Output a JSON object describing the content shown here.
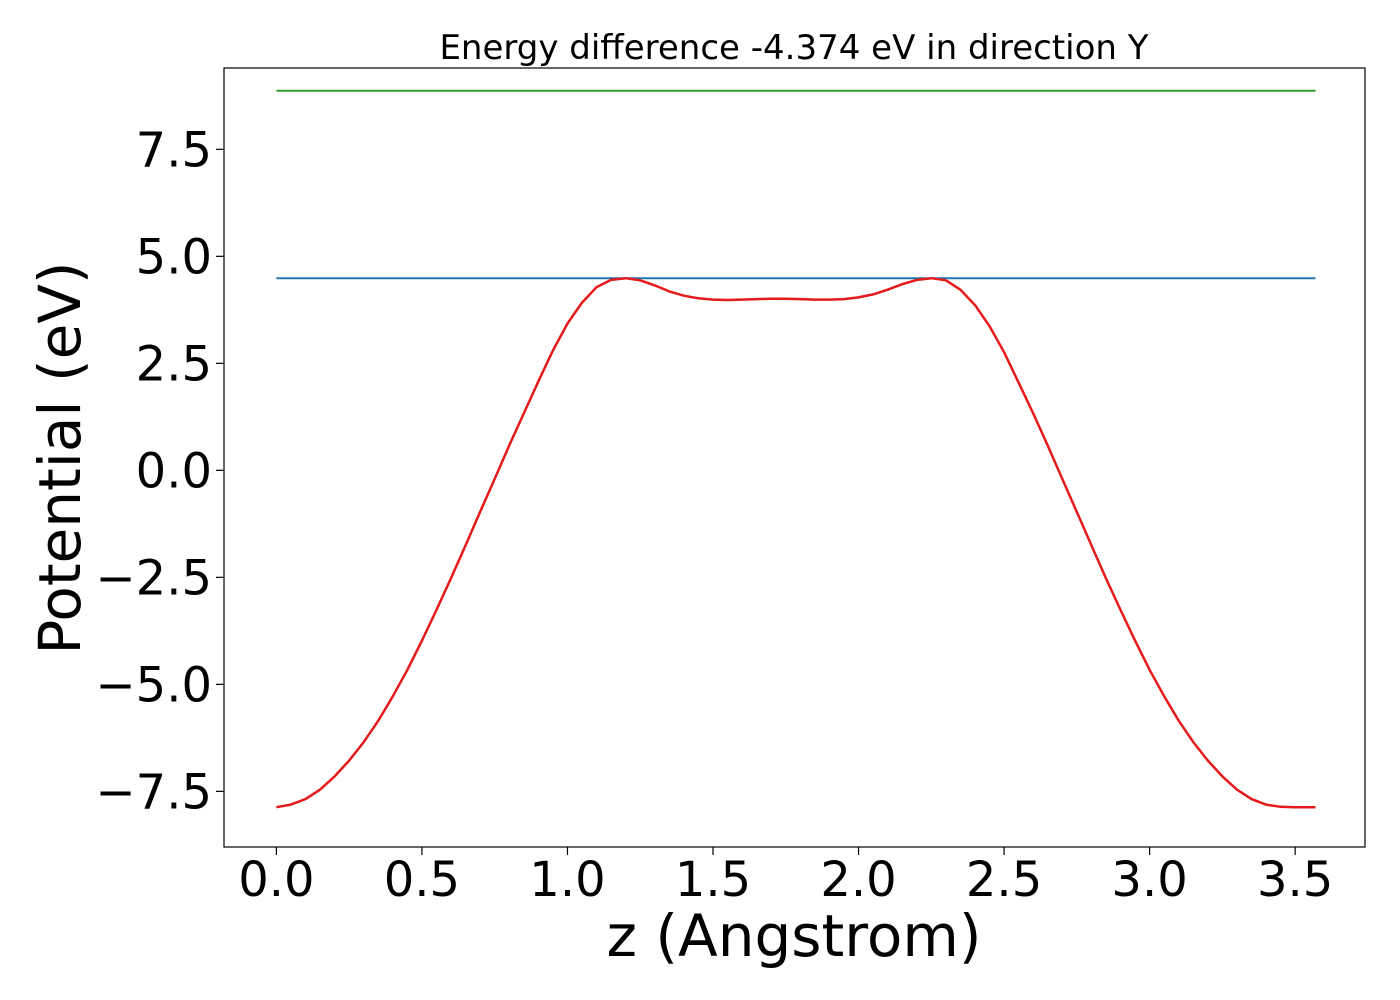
{
  "chart_data": {
    "type": "line",
    "title": "Energy difference -4.374 eV in direction Y",
    "xlabel": "z (Angstrom)",
    "ylabel": "Potential (eV)",
    "xlim": [
      -0.18,
      3.74
    ],
    "ylim": [
      -8.8,
      9.4
    ],
    "x_ticks": [
      {
        "value": 0.0,
        "label": "0.0"
      },
      {
        "value": 0.5,
        "label": "0.5"
      },
      {
        "value": 1.0,
        "label": "1.0"
      },
      {
        "value": 1.5,
        "label": "1.5"
      },
      {
        "value": 2.0,
        "label": "2.0"
      },
      {
        "value": 2.5,
        "label": "2.5"
      },
      {
        "value": 3.0,
        "label": "3.0"
      },
      {
        "value": 3.5,
        "label": "3.5"
      }
    ],
    "y_ticks": [
      {
        "value": -7.5,
        "label": "−7.5"
      },
      {
        "value": -5.0,
        "label": "−5.0"
      },
      {
        "value": -2.5,
        "label": "−2.5"
      },
      {
        "value": 0.0,
        "label": "0.0"
      },
      {
        "value": 2.5,
        "label": "2.5"
      },
      {
        "value": 5.0,
        "label": "5.0"
      },
      {
        "value": 7.5,
        "label": "7.5"
      }
    ],
    "grid": false,
    "series": [
      {
        "color": "#2ca02c",
        "x": [
          0.0,
          3.57
        ],
        "y": [
          8.87,
          8.87
        ]
      },
      {
        "color": "#1f77b4",
        "x": [
          0.0,
          3.57
        ],
        "y": [
          4.49,
          4.49
        ]
      },
      {
        "color": "#e41a1c",
        "x": [
          0.0,
          0.05,
          0.1,
          0.15,
          0.2,
          0.25,
          0.3,
          0.35,
          0.4,
          0.45,
          0.5,
          0.55,
          0.6,
          0.65,
          0.7,
          0.75,
          0.8,
          0.85,
          0.9,
          0.95,
          1.0,
          1.05,
          1.1,
          1.15,
          1.2,
          1.25,
          1.3,
          1.35,
          1.4,
          1.45,
          1.5,
          1.55,
          1.6,
          1.65,
          1.7,
          1.75,
          1.8,
          1.85,
          1.9,
          1.95,
          2.0,
          2.05,
          2.1,
          2.15,
          2.2,
          2.25,
          2.3,
          2.35,
          2.4,
          2.45,
          2.5,
          2.55,
          2.6,
          2.65,
          2.7,
          2.75,
          2.8,
          2.85,
          2.9,
          2.95,
          3.0,
          3.05,
          3.1,
          3.15,
          3.2,
          3.25,
          3.3,
          3.35,
          3.4,
          3.45,
          3.5,
          3.55,
          3.57
        ],
        "y": [
          -7.87,
          -7.81,
          -7.68,
          -7.46,
          -7.15,
          -6.78,
          -6.35,
          -5.85,
          -5.28,
          -4.66,
          -3.98,
          -3.26,
          -2.52,
          -1.75,
          -0.97,
          -0.2,
          0.58,
          1.33,
          2.08,
          2.8,
          3.43,
          3.92,
          4.28,
          4.45,
          4.49,
          4.44,
          4.32,
          4.18,
          4.08,
          4.02,
          3.99,
          3.98,
          3.99,
          4.0,
          4.01,
          4.01,
          4.0,
          3.99,
          3.99,
          4.0,
          4.04,
          4.11,
          4.22,
          4.35,
          4.45,
          4.49,
          4.44,
          4.22,
          3.86,
          3.37,
          2.76,
          2.05,
          1.33,
          0.58,
          -0.2,
          -0.97,
          -1.75,
          -2.52,
          -3.26,
          -3.98,
          -4.66,
          -5.28,
          -5.85,
          -6.35,
          -6.78,
          -7.15,
          -7.46,
          -7.68,
          -7.81,
          -7.86,
          -7.87,
          -7.87,
          -7.87
        ]
      }
    ]
  }
}
